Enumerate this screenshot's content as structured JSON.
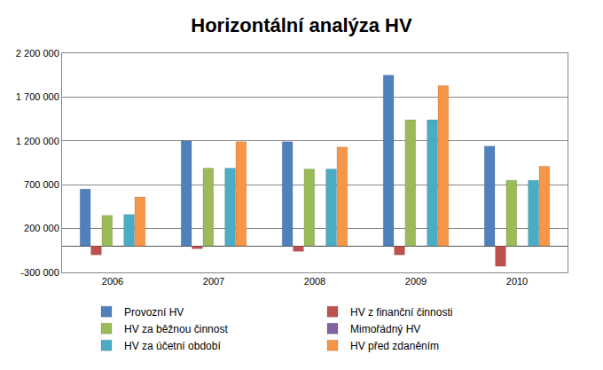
{
  "chart_data": {
    "type": "bar",
    "title": "Horizontální analýza HV",
    "categories": [
      "2006",
      "2007",
      "2008",
      "2009",
      "2010"
    ],
    "series": [
      {
        "name": "Provozní HV",
        "color": "#4f81bd",
        "values": [
          650000,
          1200000,
          1190000,
          1950000,
          1140000
        ]
      },
      {
        "name": "HV z finanční činnosti",
        "color": "#c0504d",
        "values": [
          -100000,
          -30000,
          -60000,
          -100000,
          -230000
        ]
      },
      {
        "name": "HV za běžnou činnost",
        "color": "#9bbb59",
        "values": [
          350000,
          890000,
          880000,
          1440000,
          750000
        ]
      },
      {
        "name": "Mimořádný HV",
        "color": "#8064a2",
        "values": [
          0,
          0,
          0,
          0,
          0
        ]
      },
      {
        "name": "HV za účetní období",
        "color": "#4bacc6",
        "values": [
          360000,
          890000,
          880000,
          1440000,
          750000
        ]
      },
      {
        "name": "HV před zdaněním",
        "color": "#f79646",
        "values": [
          560000,
          1190000,
          1130000,
          1830000,
          910000
        ]
      }
    ],
    "ylim": [
      -300000,
      2200000
    ],
    "yticks": [
      {
        "value": -300000,
        "label": "-300 000"
      },
      {
        "value": 200000,
        "label": "200 000"
      },
      {
        "value": 700000,
        "label": "700 000"
      },
      {
        "value": 1200000,
        "label": "1 200 000"
      },
      {
        "value": 1700000,
        "label": "1 700 000"
      },
      {
        "value": 2200000,
        "label": "2 200 000"
      }
    ],
    "grid": true,
    "legend": "bottom"
  }
}
